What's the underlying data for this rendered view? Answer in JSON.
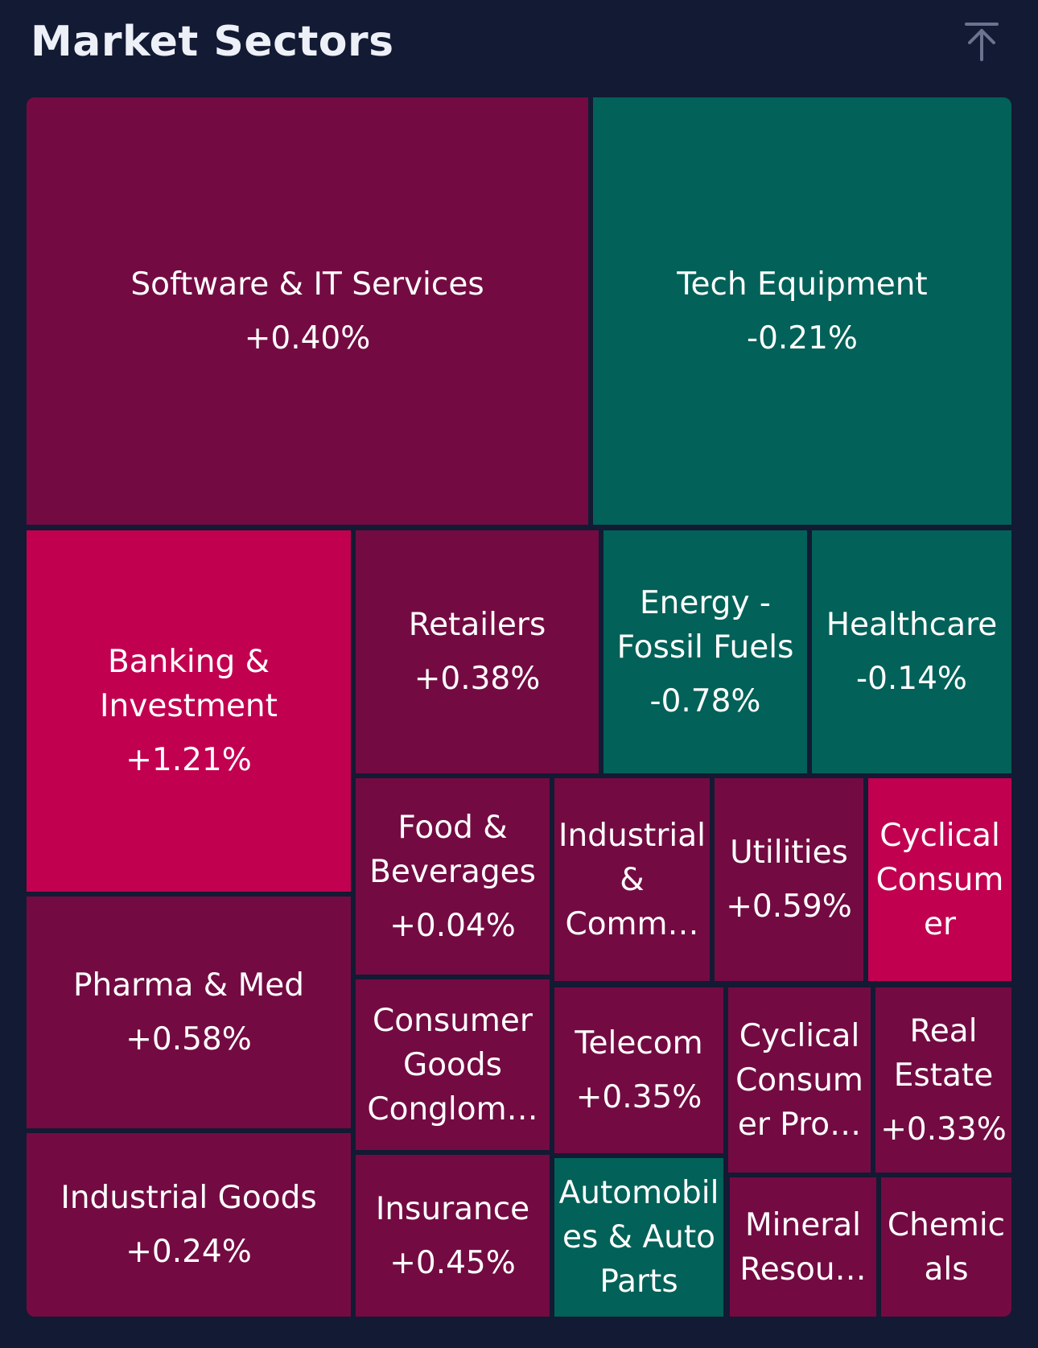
{
  "header": {
    "title": "Market Sectors",
    "collapse_icon": "arrow-up-to-line-icon"
  },
  "colors": {
    "background": "#131a33",
    "up_moderate": "#730b42",
    "up_strong": "#c10050",
    "down": "#026158"
  },
  "chart_data": {
    "type": "treemap",
    "title": "Market Sectors",
    "sectors": [
      {
        "name": "Software & IT Services",
        "change_text": "+0.40%",
        "change": 0.4
      },
      {
        "name": "Tech Equipment",
        "change_text": "-0.21%",
        "change": -0.21
      },
      {
        "name": "Banking &\nInvestment",
        "change_text": "+1.21%",
        "change": 1.21
      },
      {
        "name": "Retailers",
        "change_text": "+0.38%",
        "change": 0.38
      },
      {
        "name": "Energy -\nFossil Fuels",
        "change_text": "-0.78%",
        "change": -0.78
      },
      {
        "name": "Healthcare",
        "change_text": "-0.14%",
        "change": -0.14
      },
      {
        "name": "Food &\nBeverages",
        "change_text": "+0.04%",
        "change": 0.04
      },
      {
        "name": "Industrial\n&\nComm…",
        "change_text": "",
        "change": null
      },
      {
        "name": "Utilities",
        "change_text": "+0.59%",
        "change": 0.59
      },
      {
        "name": "Cyclical\nConsum\ner",
        "change_text": "",
        "change": null
      },
      {
        "name": "Pharma & Med",
        "change_text": "+0.58%",
        "change": 0.58
      },
      {
        "name": "Consumer\nGoods\nConglom…",
        "change_text": "",
        "change": null
      },
      {
        "name": "Telecom",
        "change_text": "+0.35%",
        "change": 0.35
      },
      {
        "name": "Cyclical\nConsum\ner Pro…",
        "change_text": "",
        "change": null
      },
      {
        "name": "Real\nEstate",
        "change_text": "+0.33%",
        "change": 0.33
      },
      {
        "name": "Industrial Goods",
        "change_text": "+0.24%",
        "change": 0.24
      },
      {
        "name": "Insurance",
        "change_text": "+0.45%",
        "change": 0.45
      },
      {
        "name": "Automobil\nes & Auto\nParts",
        "change_text": "",
        "change": null
      },
      {
        "name": "Mineral\nResou…",
        "change_text": "",
        "change": null
      },
      {
        "name": "Chemic\nals",
        "change_text": "",
        "change": null
      }
    ]
  }
}
